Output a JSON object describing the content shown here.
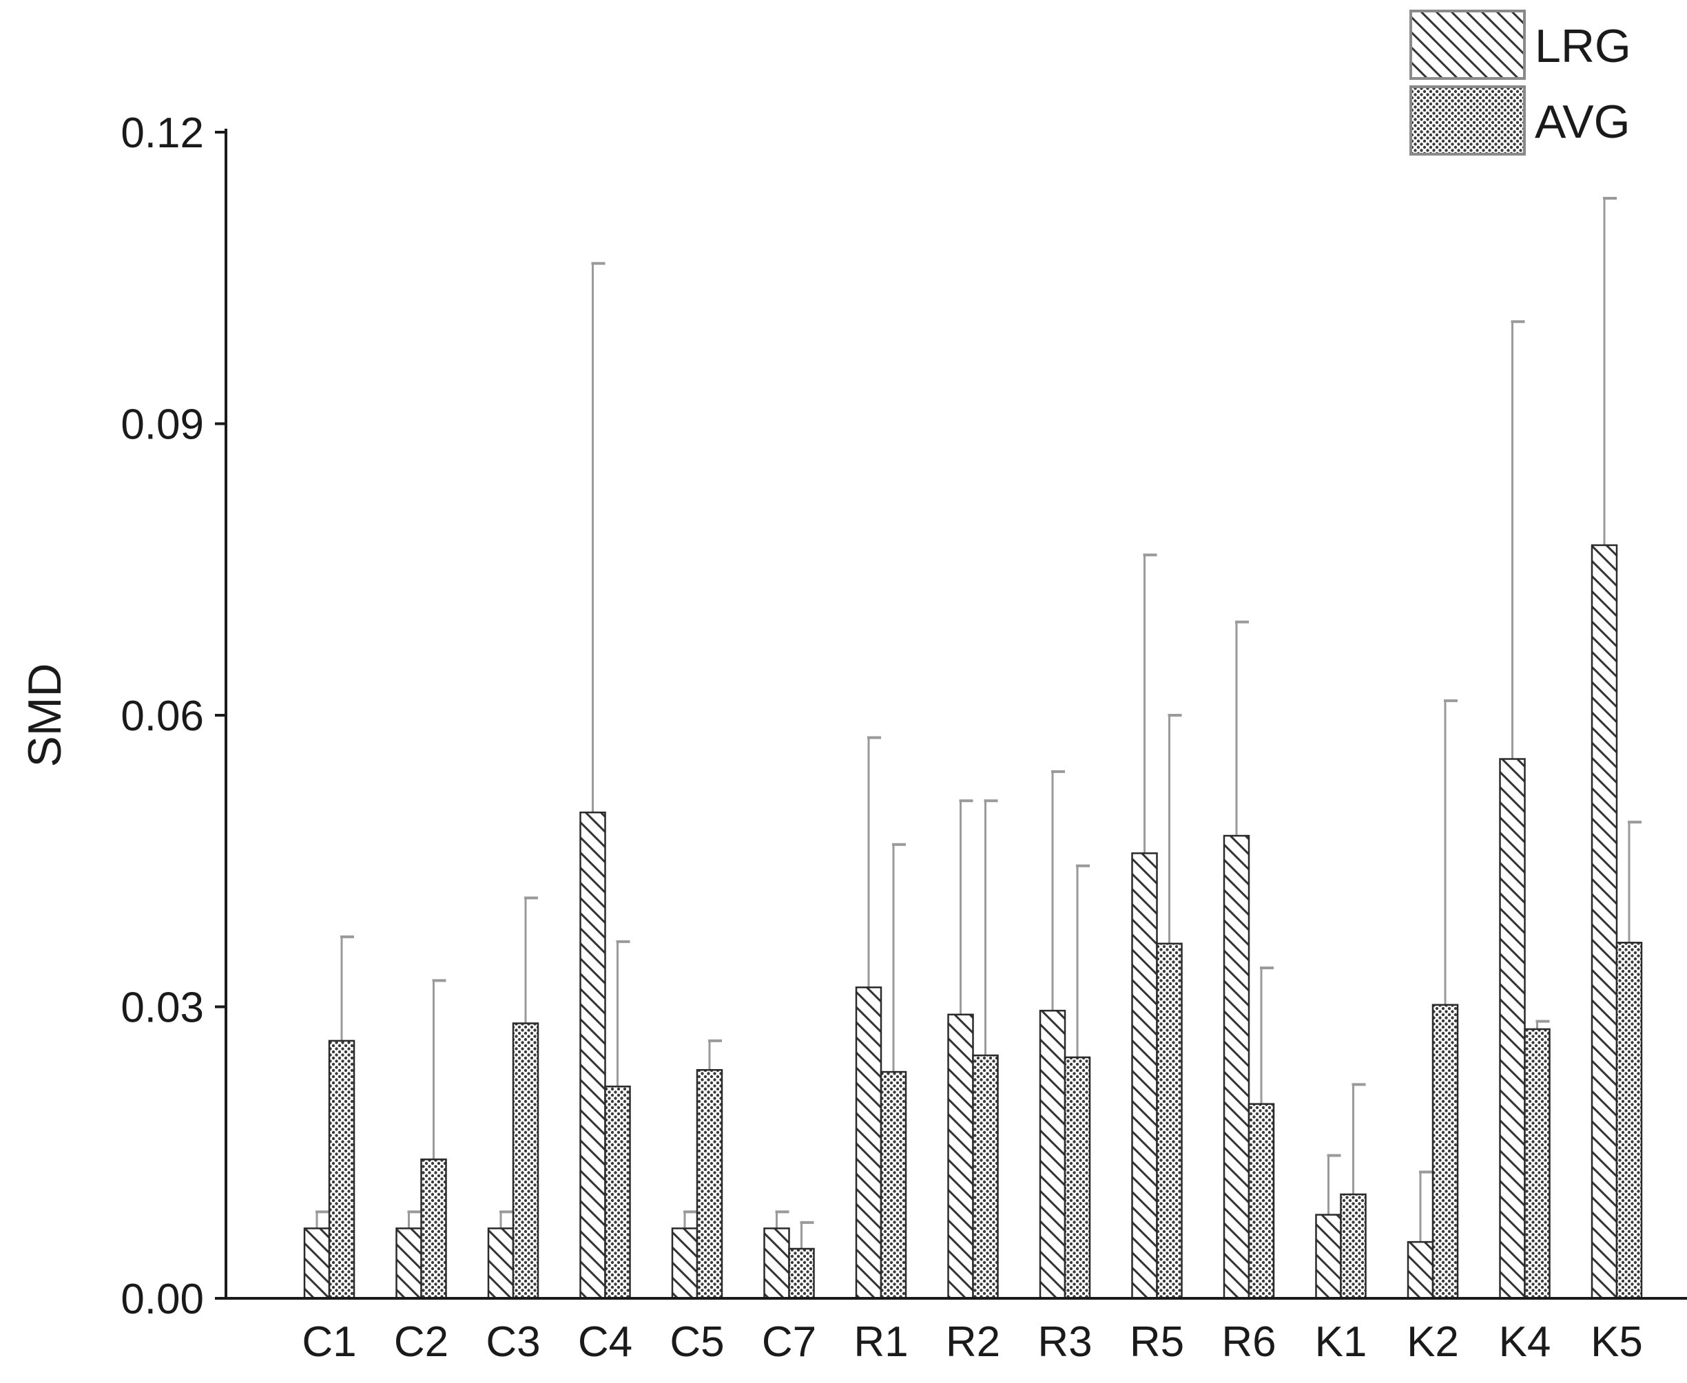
{
  "chart_data": {
    "type": "bar",
    "title": "",
    "xlabel": "",
    "ylabel": "SMD",
    "ylim": [
      0,
      0.12
    ],
    "yticks": [
      "0.00",
      "0.03",
      "0.06",
      "0.09",
      "0.12"
    ],
    "grid": false,
    "legend_position": "top-right",
    "categories": [
      "C1",
      "C2",
      "C3",
      "C4",
      "C5",
      "C7",
      "R1",
      "R2",
      "R3",
      "R5",
      "R6",
      "K1",
      "K2",
      "K4",
      "K5"
    ],
    "series": [
      {
        "name": "LRG",
        "pattern": "diagonal-hatch",
        "values": [
          0.0072,
          0.0072,
          0.0072,
          0.05,
          0.0072,
          0.0072,
          0.032,
          0.0292,
          0.0296,
          0.0458,
          0.0476,
          0.0086,
          0.0058,
          0.0555,
          0.0775
        ],
        "error_upper": [
          0.0089,
          0.0089,
          0.0089,
          0.1065,
          0.0089,
          0.0089,
          0.0577,
          0.0512,
          0.0542,
          0.0765,
          0.0696,
          0.0147,
          0.013,
          0.1005,
          0.1132
        ]
      },
      {
        "name": "AVG",
        "pattern": "crosshatch",
        "values": [
          0.0265,
          0.0143,
          0.0283,
          0.0218,
          0.0235,
          0.0051,
          0.0233,
          0.025,
          0.0248,
          0.0365,
          0.02,
          0.0107,
          0.0302,
          0.0277,
          0.0366
        ],
        "error_upper": [
          0.0372,
          0.0327,
          0.0412,
          0.0367,
          0.0265,
          0.0078,
          0.0467,
          0.0512,
          0.0445,
          0.06,
          0.034,
          0.022,
          0.0615,
          0.0285,
          0.049
        ]
      }
    ],
    "colors": {
      "bar_fill": "#ffffff",
      "bar_stroke": "#2a2a2a",
      "hatch": "#333333",
      "dots": "#3a3a3a",
      "error_bar": "#9a9a9a",
      "axis": "#1a1a1a"
    }
  }
}
